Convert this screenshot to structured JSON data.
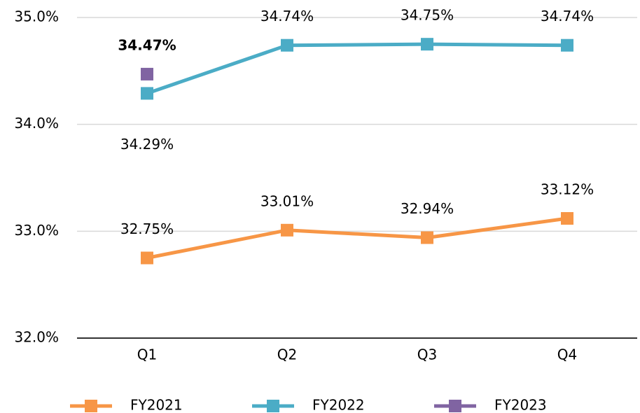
{
  "chart_data": {
    "type": "line",
    "categories": [
      "Q1",
      "Q2",
      "Q3",
      "Q4"
    ],
    "series": [
      {
        "name": "FY2021",
        "color": "#f79646",
        "values": [
          32.75,
          33.01,
          32.94,
          33.12
        ],
        "value_labels": [
          "32.75%",
          "33.01%",
          "32.94%",
          "33.12%"
        ]
      },
      {
        "name": "FY2022",
        "color": "#4bacc6",
        "values": [
          34.29,
          34.74,
          34.75,
          34.74
        ],
        "value_labels": [
          "34.29%",
          "34.74%",
          "34.75%",
          "34.74%"
        ]
      },
      {
        "name": "FY2023",
        "color": "#8064a2",
        "values": [
          34.47,
          null,
          null,
          null
        ],
        "value_labels": [
          "34.47%",
          null,
          null,
          null
        ]
      }
    ],
    "ylim": [
      32,
      35
    ],
    "yticks": [
      {
        "value": 32,
        "label": "32.0%"
      },
      {
        "value": 33,
        "label": "33.0%"
      },
      {
        "value": 34,
        "label": "34.0%"
      },
      {
        "value": 35,
        "label": "35.0%"
      }
    ],
    "grid": true
  }
}
